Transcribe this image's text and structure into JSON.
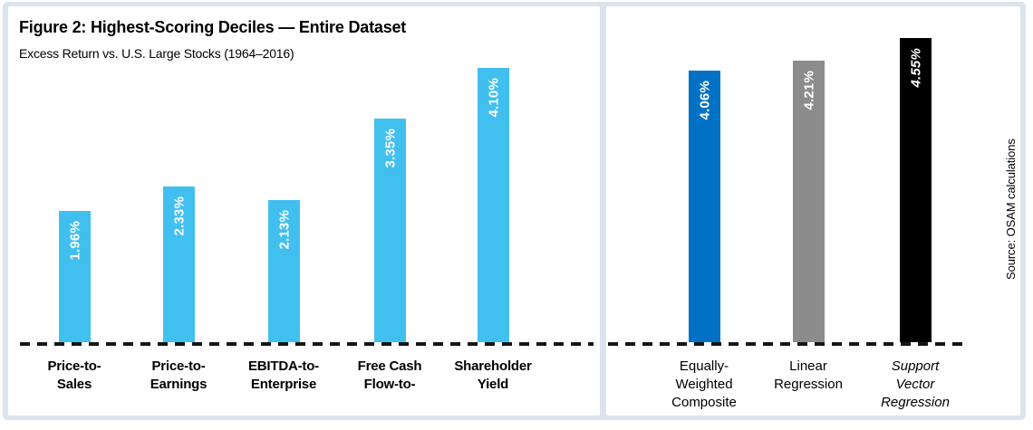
{
  "figure": {
    "title": "Figure 2: Highest-Scoring Deciles — Entire Dataset",
    "subtitle": "Excess Return vs. U.S. Large Stocks (1964–2016)",
    "source_note": "Source: OSAM calculations",
    "frame_color": "#dbe4ed"
  },
  "chart_data": [
    {
      "type": "bar",
      "panel": "left",
      "title": "Figure 2: Highest-Scoring Deciles — Entire Dataset",
      "subtitle": "Excess Return vs. U.S. Large Stocks (1964–2016)",
      "categories": [
        "Price-to-\nSales",
        "Price-to-\nEarnings",
        "EBITDA-to-\nEnterprise",
        "Free Cash\nFlow-to-",
        "Shareholder\nYield"
      ],
      "values": [
        1.96,
        2.33,
        2.13,
        3.35,
        4.1
      ],
      "value_labels": [
        "1.96%",
        "2.33%",
        "2.13%",
        "3.35%",
        "4.10%"
      ],
      "bar_color": "#41C0F0",
      "xlabel": "",
      "ylabel": "",
      "ylim": [
        0,
        4.8
      ],
      "grid": false,
      "baseline": "dashed",
      "value_labels_rotated": true,
      "value_label_color": "#ffffff"
    },
    {
      "type": "bar",
      "panel": "right",
      "categories": [
        "Equally-\nWeighted\nComposite",
        "Linear\nRegression",
        "Support\nVector\nRegression"
      ],
      "values": [
        4.06,
        4.21,
        4.55
      ],
      "value_labels": [
        "4.06%",
        "4.21%",
        "4.55%"
      ],
      "bar_colors": [
        "#0071C5",
        "#8C8C8C",
        "#000000"
      ],
      "emphasis_index": 2,
      "xlabel": "",
      "ylabel": "",
      "ylim": [
        0,
        4.8
      ],
      "grid": false,
      "baseline": "dashed",
      "value_labels_rotated": true,
      "value_label_color": "#ffffff"
    }
  ]
}
